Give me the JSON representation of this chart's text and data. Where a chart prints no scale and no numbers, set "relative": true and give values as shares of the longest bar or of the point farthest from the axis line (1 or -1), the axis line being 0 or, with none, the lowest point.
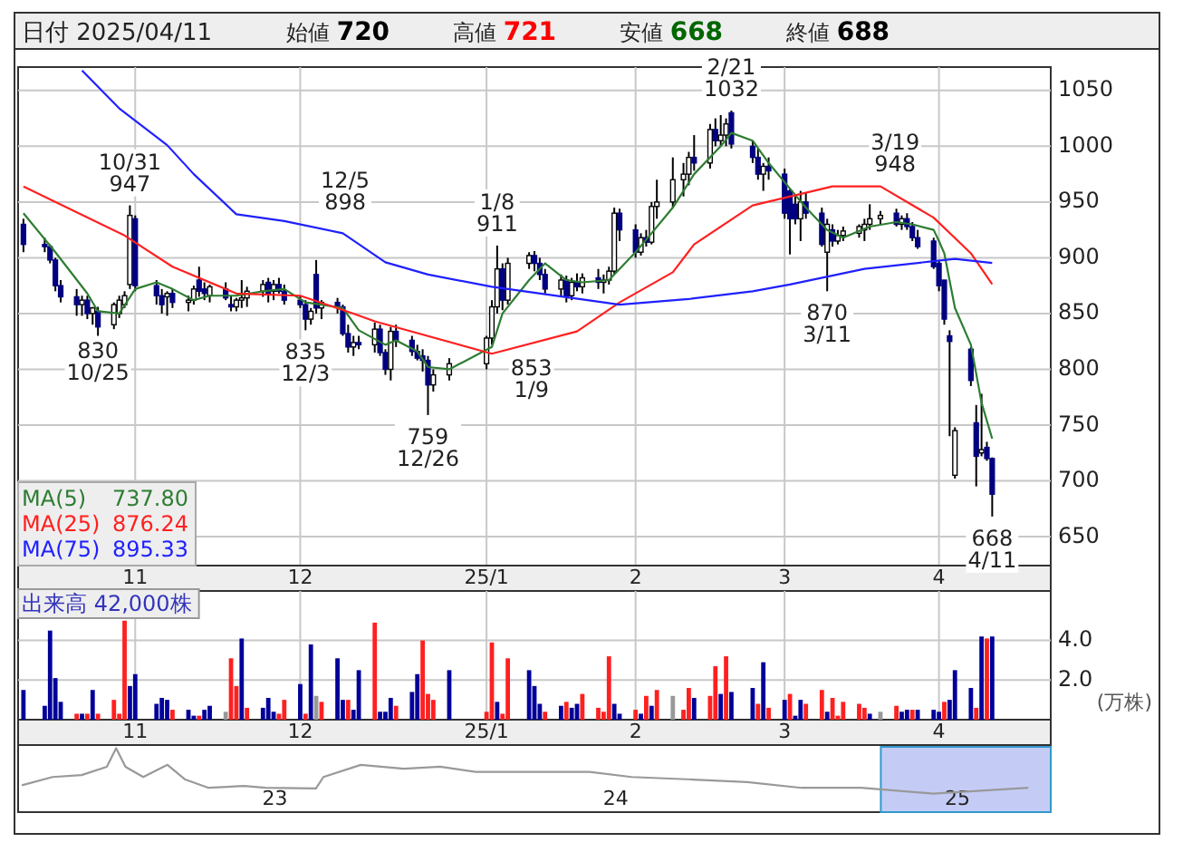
{
  "chart_data": [
    {
      "type": "candlestick",
      "title": "日付 2025/04/11",
      "annotations": [
        "始値 720",
        "高値 721",
        "安値 668",
        "終値 688",
        {
          "text": "10/31\n947",
          "x": "2024-10-31",
          "y": 947
        },
        {
          "text": "830\n10/25",
          "x": "2024-10-25",
          "y": 830
        },
        {
          "text": "12/5\n898",
          "x": "2024-12-05",
          "y": 898
        },
        {
          "text": "835\n12/3",
          "x": "2024-12-03",
          "y": 835
        },
        {
          "text": "759\n12/26",
          "x": "2024-12-26",
          "y": 759
        },
        {
          "text": "1/8\n911",
          "x": "2025-01-08",
          "y": 911
        },
        {
          "text": "853\n1/9",
          "x": "2025-01-09",
          "y": 853
        },
        {
          "text": "2/21\n1032",
          "x": "2025-02-21",
          "y": 1032
        },
        {
          "text": "3/19\n948",
          "x": "2025-03-19",
          "y": 948
        },
        {
          "text": "870\n3/11",
          "x": "2025-03-11",
          "y": 870
        },
        {
          "text": "668\n4/11",
          "x": "2025-04-11",
          "y": 668
        }
      ],
      "x": [
        "2024-10-11",
        "2024-10-15",
        "2024-10-16",
        "2024-10-17",
        "2024-10-18",
        "2024-10-21",
        "2024-10-22",
        "2024-10-23",
        "2024-10-24",
        "2024-10-25",
        "2024-10-28",
        "2024-10-29",
        "2024-10-30",
        "2024-10-31",
        "2024-11-01",
        "2024-11-05",
        "2024-11-06",
        "2024-11-07",
        "2024-11-08",
        "2024-11-11",
        "2024-11-12",
        "2024-11-13",
        "2024-11-14",
        "2024-11-15",
        "2024-11-18",
        "2024-11-19",
        "2024-11-20",
        "2024-11-21",
        "2024-11-22",
        "2024-11-25",
        "2024-11-26",
        "2024-11-27",
        "2024-11-28",
        "2024-11-29",
        "2024-12-02",
        "2024-12-03",
        "2024-12-04",
        "2024-12-05",
        "2024-12-06",
        "2024-12-09",
        "2024-12-10",
        "2024-12-11",
        "2024-12-12",
        "2024-12-13",
        "2024-12-16",
        "2024-12-17",
        "2024-12-18",
        "2024-12-19",
        "2024-12-20",
        "2024-12-23",
        "2024-12-24",
        "2024-12-25",
        "2024-12-26",
        "2024-12-27",
        "2024-12-30",
        "2025-01-06",
        "2025-01-07",
        "2025-01-08",
        "2025-01-09",
        "2025-01-10",
        "2025-01-14",
        "2025-01-15",
        "2025-01-16",
        "2025-01-17",
        "2025-01-20",
        "2025-01-21",
        "2025-01-22",
        "2025-01-23",
        "2025-01-24",
        "2025-01-27",
        "2025-01-28",
        "2025-01-29",
        "2025-01-30",
        "2025-01-31",
        "2025-02-03",
        "2025-02-04",
        "2025-02-05",
        "2025-02-06",
        "2025-02-07",
        "2025-02-10",
        "2025-02-12",
        "2025-02-13",
        "2025-02-14",
        "2025-02-17",
        "2025-02-18",
        "2025-02-19",
        "2025-02-20",
        "2025-02-21",
        "2025-02-25",
        "2025-02-26",
        "2025-02-27",
        "2025-02-28",
        "2025-03-03",
        "2025-03-04",
        "2025-03-05",
        "2025-03-06",
        "2025-03-07",
        "2025-03-10",
        "2025-03-11",
        "2025-03-12",
        "2025-03-13",
        "2025-03-14",
        "2025-03-17",
        "2025-03-18",
        "2025-03-19",
        "2025-03-21",
        "2025-03-24",
        "2025-03-25",
        "2025-03-26",
        "2025-03-27",
        "2025-03-28",
        "2025-03-31",
        "2025-04-01",
        "2025-04-02",
        "2025-04-03",
        "2025-04-04",
        "2025-04-07",
        "2025-04-08",
        "2025-04-09",
        "2025-04-10",
        "2025-04-11"
      ],
      "ohlc": [
        [
          930,
          935,
          905,
          912
        ],
        [
          912,
          918,
          905,
          910
        ],
        [
          910,
          912,
          895,
          898
        ],
        [
          898,
          900,
          870,
          875
        ],
        [
          875,
          880,
          860,
          865
        ],
        [
          865,
          872,
          848,
          858
        ],
        [
          858,
          866,
          848,
          862
        ],
        [
          862,
          866,
          845,
          850
        ],
        [
          850,
          856,
          840,
          855
        ],
        [
          852,
          856,
          830,
          838
        ],
        [
          840,
          860,
          836,
          858
        ],
        [
          850,
          866,
          846,
          862
        ],
        [
          858,
          870,
          855,
          866
        ],
        [
          876,
          947,
          872,
          938
        ],
        [
          935,
          938,
          870,
          875
        ],
        [
          875,
          880,
          858,
          866
        ],
        [
          866,
          872,
          850,
          858
        ],
        [
          865,
          870,
          848,
          868
        ],
        [
          868,
          872,
          855,
          860
        ],
        [
          860,
          866,
          852,
          862
        ],
        [
          862,
          875,
          858,
          872
        ],
        [
          880,
          892,
          865,
          870
        ],
        [
          872,
          878,
          862,
          868
        ],
        [
          866,
          876,
          860,
          874
        ],
        [
          872,
          878,
          862,
          864
        ],
        [
          858,
          866,
          852,
          856
        ],
        [
          856,
          864,
          852,
          862
        ],
        [
          862,
          880,
          855,
          864
        ],
        [
          864,
          874,
          856,
          870
        ],
        [
          870,
          880,
          865,
          876
        ],
        [
          878,
          882,
          860,
          868
        ],
        [
          870,
          880,
          862,
          876
        ],
        [
          876,
          882,
          868,
          870
        ],
        [
          870,
          876,
          858,
          862
        ],
        [
          862,
          866,
          855,
          858
        ],
        [
          858,
          862,
          835,
          845
        ],
        [
          845,
          855,
          840,
          852
        ],
        [
          885,
          898,
          850,
          855
        ],
        [
          855,
          862,
          845,
          860
        ],
        [
          860,
          864,
          850,
          856
        ],
        [
          856,
          858,
          830,
          832
        ],
        [
          832,
          840,
          815,
          820
        ],
        [
          820,
          830,
          812,
          824
        ],
        [
          824,
          830,
          818,
          822
        ],
        [
          822,
          842,
          815,
          836
        ],
        [
          836,
          840,
          812,
          815
        ],
        [
          815,
          818,
          795,
          800
        ],
        [
          800,
          838,
          790,
          834
        ],
        [
          834,
          840,
          820,
          826
        ],
        [
          826,
          830,
          812,
          816
        ],
        [
          816,
          822,
          808,
          810
        ],
        [
          812,
          818,
          798,
          808
        ],
        [
          808,
          812,
          759,
          786
        ],
        [
          786,
          800,
          780,
          795
        ],
        [
          795,
          810,
          790,
          805
        ],
        [
          805,
          830,
          800,
          828
        ],
        [
          828,
          862,
          822,
          856
        ],
        [
          856,
          911,
          850,
          890
        ],
        [
          890,
          895,
          853,
          862
        ],
        [
          862,
          900,
          858,
          895
        ],
        [
          895,
          905,
          890,
          902
        ],
        [
          902,
          906,
          888,
          895
        ],
        [
          895,
          900,
          880,
          885
        ],
        [
          885,
          890,
          868,
          872
        ],
        [
          872,
          885,
          865,
          880
        ],
        [
          880,
          884,
          860,
          866
        ],
        [
          866,
          882,
          862,
          878
        ],
        [
          878,
          886,
          870,
          874
        ],
        [
          874,
          886,
          868,
          882
        ],
        [
          882,
          890,
          872,
          878
        ],
        [
          878,
          885,
          868,
          880
        ],
        [
          880,
          892,
          876,
          888
        ],
        [
          888,
          945,
          885,
          940
        ],
        [
          940,
          944,
          915,
          925
        ],
        [
          925,
          930,
          900,
          905
        ],
        [
          905,
          922,
          902,
          918
        ],
        [
          918,
          925,
          910,
          914
        ],
        [
          914,
          950,
          912,
          946
        ],
        [
          946,
          970,
          935,
          950
        ],
        [
          950,
          990,
          945,
          970
        ],
        [
          970,
          985,
          955,
          975
        ],
        [
          975,
          995,
          965,
          990
        ],
        [
          990,
          1010,
          978,
          985
        ],
        [
          985,
          1020,
          980,
          1015
        ],
        [
          1015,
          1025,
          1000,
          1005
        ],
        [
          1005,
          1028,
          1000,
          1010
        ],
        [
          1010,
          1025,
          1000,
          1020
        ],
        [
          1030,
          1032,
          998,
          1002
        ],
        [
          1000,
          1005,
          985,
          990
        ],
        [
          990,
          998,
          970,
          975
        ],
        [
          975,
          985,
          960,
          982
        ],
        [
          982,
          990,
          970,
          978
        ],
        [
          975,
          980,
          935,
          940
        ],
        [
          960,
          962,
          903,
          935
        ],
        [
          948,
          955,
          930,
          935
        ],
        [
          935,
          960,
          915,
          950
        ],
        [
          950,
          958,
          935,
          940
        ],
        [
          940,
          945,
          910,
          912
        ],
        [
          905,
          935,
          870,
          930
        ],
        [
          925,
          930,
          910,
          915
        ],
        [
          915,
          925,
          912,
          920
        ],
        [
          920,
          928,
          915,
          924
        ],
        [
          922,
          930,
          918,
          928
        ],
        [
          925,
          935,
          915,
          930
        ],
        [
          930,
          948,
          925,
          935
        ],
        [
          935,
          942,
          930,
          938
        ],
        [
          940,
          944,
          928,
          930
        ],
        [
          930,
          938,
          925,
          935
        ],
        [
          935,
          940,
          925,
          928
        ],
        [
          928,
          932,
          915,
          918
        ],
        [
          918,
          925,
          908,
          910
        ],
        [
          915,
          918,
          890,
          892
        ],
        [
          895,
          898,
          870,
          875
        ],
        [
          880,
          880,
          840,
          845
        ],
        [
          830,
          835,
          740,
          825
        ],
        [
          705,
          748,
          702,
          745
        ],
        [
          818,
          820,
          785,
          790
        ],
        [
          752,
          768,
          695,
          722
        ],
        [
          725,
          778,
          722,
          728
        ],
        [
          730,
          735,
          718,
          720
        ],
        [
          720,
          721,
          668,
          688
        ]
      ],
      "series": [
        {
          "name": "MA(5) 737.80",
          "type": "line",
          "color": "#2e7d32",
          "x": [
            "2024-10-11",
            "2024-10-17",
            "2024-10-23",
            "2024-10-25",
            "2024-10-29",
            "2024-11-01",
            "2024-11-05",
            "2024-11-08",
            "2024-11-12",
            "2024-11-15",
            "2024-11-20",
            "2024-11-25",
            "2024-11-29",
            "2024-12-03",
            "2024-12-06",
            "2024-12-10",
            "2024-12-13",
            "2024-12-18",
            "2024-12-20",
            "2024-12-24",
            "2024-12-26",
            "2024-12-30",
            "2025-01-07",
            "2025-01-09",
            "2025-01-14",
            "2025-01-17",
            "2025-01-21",
            "2025-01-24",
            "2025-01-29",
            "2025-02-03",
            "2025-02-06",
            "2025-02-10",
            "2025-02-14",
            "2025-02-19",
            "2025-02-21",
            "2025-02-25",
            "2025-02-28",
            "2025-03-04",
            "2025-03-07",
            "2025-03-11",
            "2025-03-14",
            "2025-03-19",
            "2025-03-24",
            "2025-03-27",
            "2025-03-31",
            "2025-04-01",
            "2025-04-02",
            "2025-04-04",
            "2025-04-07",
            "2025-04-09",
            "2025-04-11"
          ],
          "values": [
            940,
            905,
            868,
            852,
            850,
            872,
            878,
            872,
            862,
            866,
            866,
            870,
            872,
            860,
            858,
            855,
            835,
            822,
            826,
            816,
            802,
            800,
            820,
            850,
            880,
            895,
            880,
            878,
            880,
            905,
            922,
            945,
            975,
            1000,
            1012,
            1005,
            985,
            962,
            945,
            925,
            918,
            928,
            932,
            930,
            925,
            915,
            904,
            855,
            822,
            770,
            737.8
          ]
        },
        {
          "name": "MA(25) 876.24",
          "type": "line",
          "color": "#ff2020",
          "x": [
            "2024-10-11",
            "2024-10-30",
            "2024-11-08",
            "2024-11-20",
            "2024-12-02",
            "2024-12-12",
            "2024-12-16",
            "2025-01-07",
            "2025-01-23",
            "2025-01-31",
            "2025-02-10",
            "2025-02-14",
            "2025-02-25",
            "2025-03-12",
            "2025-03-21",
            "2025-03-31",
            "2025-04-07",
            "2025-04-11"
          ],
          "values": [
            964,
            920,
            892,
            868,
            866,
            850,
            843,
            814,
            834,
            860,
            887,
            912,
            947,
            964,
            964,
            936,
            904,
            876.24
          ]
        },
        {
          "name": "MA(75) 895.33",
          "type": "line",
          "color": "#2020ff",
          "x": [
            "2024-10-22",
            "2024-10-29",
            "2024-11-07",
            "2024-11-12",
            "2024-11-20",
            "2024-11-29",
            "2024-12-10",
            "2024-12-18",
            "2024-12-26",
            "2025-01-07",
            "2025-01-28",
            "2025-01-31",
            "2025-02-13",
            "2025-02-25",
            "2025-03-04",
            "2025-03-18",
            "2025-03-31",
            "2025-04-04",
            "2025-04-11"
          ],
          "values": [
            1068,
            1034,
            1001,
            975,
            939,
            933,
            922,
            896,
            885,
            874,
            860,
            858,
            863,
            870,
            876,
            890,
            897,
            899,
            895.33
          ]
        }
      ],
      "xlim": [
        "2024-10-10",
        "2025-04-22"
      ],
      "ylim": [
        624,
        1071
      ],
      "yticks": [
        650,
        700,
        750,
        800,
        850,
        900,
        950,
        1000,
        1050
      ],
      "xticks": [
        {
          "value": "2024-11-01",
          "label": "11"
        },
        {
          "value": "2024-12-02",
          "label": "12"
        },
        {
          "value": "2025-01-06",
          "label": "25/1"
        },
        {
          "value": "2025-02-03",
          "label": "2"
        },
        {
          "value": "2025-03-03",
          "label": "3"
        },
        {
          "value": "2025-04-01",
          "label": "4"
        }
      ],
      "grid": true,
      "legend": "bottom left"
    },
    {
      "type": "bar",
      "title": "出来高 42,000株",
      "ylabel": "(万株)",
      "x": [
        "2024-10-11",
        "2024-10-15",
        "2024-10-16",
        "2024-10-17",
        "2024-10-18",
        "2024-10-21",
        "2024-10-22",
        "2024-10-23",
        "2024-10-24",
        "2024-10-25",
        "2024-10-28",
        "2024-10-29",
        "2024-10-30",
        "2024-10-31",
        "2024-11-01",
        "2024-11-05",
        "2024-11-06",
        "2024-11-07",
        "2024-11-08",
        "2024-11-11",
        "2024-11-12",
        "2024-11-13",
        "2024-11-14",
        "2024-11-15",
        "2024-11-18",
        "2024-11-19",
        "2024-11-20",
        "2024-11-21",
        "2024-11-22",
        "2024-11-25",
        "2024-11-26",
        "2024-11-27",
        "2024-11-28",
        "2024-11-29",
        "2024-12-02",
        "2024-12-03",
        "2024-12-04",
        "2024-12-05",
        "2024-12-06",
        "2024-12-09",
        "2024-12-10",
        "2024-12-11",
        "2024-12-12",
        "2024-12-13",
        "2024-12-16",
        "2024-12-17",
        "2024-12-18",
        "2024-12-19",
        "2024-12-20",
        "2024-12-23",
        "2024-12-24",
        "2024-12-25",
        "2024-12-26",
        "2024-12-27",
        "2024-12-30",
        "2025-01-06",
        "2025-01-07",
        "2025-01-08",
        "2025-01-09",
        "2025-01-10",
        "2025-01-14",
        "2025-01-15",
        "2025-01-16",
        "2025-01-17",
        "2025-01-20",
        "2025-01-21",
        "2025-01-22",
        "2025-01-23",
        "2025-01-24",
        "2025-01-27",
        "2025-01-28",
        "2025-01-29",
        "2025-01-30",
        "2025-01-31",
        "2025-02-03",
        "2025-02-04",
        "2025-02-05",
        "2025-02-06",
        "2025-02-07",
        "2025-02-10",
        "2025-02-12",
        "2025-02-13",
        "2025-02-14",
        "2025-02-17",
        "2025-02-18",
        "2025-02-19",
        "2025-02-20",
        "2025-02-21",
        "2025-02-25",
        "2025-02-26",
        "2025-02-27",
        "2025-02-28",
        "2025-03-03",
        "2025-03-04",
        "2025-03-05",
        "2025-03-06",
        "2025-03-07",
        "2025-03-10",
        "2025-03-11",
        "2025-03-12",
        "2025-03-13",
        "2025-03-14",
        "2025-03-17",
        "2025-03-18",
        "2025-03-19",
        "2025-03-21",
        "2025-03-24",
        "2025-03-25",
        "2025-03-26",
        "2025-03-27",
        "2025-03-28",
        "2025-03-31",
        "2025-04-01",
        "2025-04-02",
        "2025-04-03",
        "2025-04-04",
        "2025-04-07",
        "2025-04-08",
        "2025-04-09",
        "2025-04-10",
        "2025-04-11"
      ],
      "values": [
        1.5,
        0.7,
        4.5,
        2.1,
        0.9,
        0.3,
        0.3,
        0.3,
        1.5,
        0.3,
        1.0,
        0.3,
        5.0,
        1.7,
        2.3,
        0.8,
        1.1,
        1.0,
        0.5,
        0.5,
        0.2,
        0.2,
        0.5,
        0.7,
        0.4,
        3.1,
        1.7,
        4.1,
        0.6,
        0.6,
        1.1,
        0.4,
        0.3,
        1.0,
        1.8,
        0.3,
        3.8,
        1.2,
        0.9,
        3.1,
        1.0,
        1.0,
        0.5,
        2.5,
        4.9,
        0.4,
        0.4,
        1.1,
        0.7,
        1.4,
        2.3,
        4.0,
        1.3,
        1.0,
        2.5,
        0.4,
        3.9,
        0.9,
        0.3,
        3.1,
        2.5,
        1.7,
        0.8,
        0.4,
        0.7,
        0.9,
        0.6,
        0.8,
        1.3,
        0.6,
        0.4,
        3.2,
        0.8,
        0.3,
        0.5,
        0.3,
        1.2,
        0.7,
        1.5,
        1.2,
        0.5,
        1.6,
        1.1,
        1.2,
        2.7,
        1.3,
        3.2,
        1.4,
        1.6,
        0.8,
        2.9,
        0.6,
        1.0,
        1.3,
        0.2,
        1.0,
        0.8,
        1.5,
        0.4,
        1.1,
        0.2,
        0.9,
        0.8,
        0.6,
        0.3,
        0.4,
        0.7,
        0.4,
        0.5,
        0.5,
        0.5,
        0.5,
        0.4,
        0.9,
        1.0,
        2.5,
        1.6,
        0.6,
        4.2,
        4.1,
        4.2
      ],
      "colors": [
        "#000099",
        "#000099",
        "#000099",
        "#000099",
        "#000099",
        "#ff2020",
        "#000099",
        "#ff2020",
        "#000099",
        "#ff2020",
        "#ff2020",
        "#ff2020",
        "#ff2020",
        "#000099",
        "#000099",
        "#000099",
        "#000099",
        "#000099",
        "#ff2020",
        "#000099",
        "#000099",
        "#ff2020",
        "#000099",
        "#000099",
        "#999999",
        "#ff2020",
        "#ff2020",
        "#000099",
        "#ff2020",
        "#000099",
        "#000099",
        "#000099",
        "#ff2020",
        "#ff2020",
        "#000099",
        "#ff2020",
        "#000099",
        "#999999",
        "#ff2020",
        "#000099",
        "#000099",
        "#ff2020",
        "#000099",
        "#000099",
        "#ff2020",
        "#000099",
        "#000099",
        "#000099",
        "#ff2020",
        "#000099",
        "#000099",
        "#ff2020",
        "#ff2020",
        "#ff2020",
        "#000099",
        "#ff2020",
        "#ff2020",
        "#000099",
        "#ff2020",
        "#ff2020",
        "#000099",
        "#000099",
        "#000099",
        "#ff2020",
        "#000099",
        "#ff2020",
        "#000099",
        "#000099",
        "#ff2020",
        "#ff2020",
        "#ff2020",
        "#ff2020",
        "#000099",
        "#000099",
        "#ff2020",
        "#000099",
        "#ff2020",
        "#000099",
        "#ff2020",
        "#999999",
        "#ff2020",
        "#ff2020",
        "#000099",
        "#ff2020",
        "#ff2020",
        "#000099",
        "#ff2020",
        "#000099",
        "#000099",
        "#ff2020",
        "#000099",
        "#ff2020",
        "#000099",
        "#ff2020",
        "#000099",
        "#000099",
        "#ff2020",
        "#ff2020",
        "#000099",
        "#ff2020",
        "#ff2020",
        "#ff2020",
        "#ff2020",
        "#ff2020",
        "#000099",
        "#999999",
        "#ff2020",
        "#000099",
        "#000099",
        "#ff2020",
        "#000099",
        "#000099",
        "#000099",
        "#ff2020",
        "#000099",
        "#000099",
        "#000099",
        "#ff2020",
        "#000099",
        "#ff2020",
        "#000099"
      ],
      "xlim": [
        "2024-10-10",
        "2025-04-22"
      ],
      "ylim": [
        0,
        6.5
      ],
      "yticks": [
        {
          "value": 2,
          "label": "2.0"
        },
        {
          "value": 4,
          "label": "4.0"
        }
      ],
      "xticks": [
        {
          "value": "2024-11-01",
          "label": "11"
        },
        {
          "value": "2024-12-02",
          "label": "12"
        },
        {
          "value": "2025-01-06",
          "label": "25/1"
        },
        {
          "value": "2025-02-03",
          "label": "2"
        },
        {
          "value": "2025-03-03",
          "label": "3"
        },
        {
          "value": "2025-04-01",
          "label": "4"
        }
      ],
      "grid": true
    },
    {
      "type": "line",
      "relative": true,
      "color": "#999999",
      "x": [
        "2022-04-05",
        "2022-05-08",
        "2022-06-08",
        "2022-07-05",
        "2022-07-15",
        "2022-07-25",
        "2022-08-13",
        "2022-09-08",
        "2022-09-27",
        "2022-10-22",
        "2022-11-29",
        "2022-12-22",
        "2023-02-14",
        "2023-02-22",
        "2023-04-03",
        "2023-05-19",
        "2023-06-27",
        "2023-08-04",
        "2023-10-07",
        "2023-12-04",
        "2024-01-18",
        "2024-03-24",
        "2024-05-21",
        "2024-07-18",
        "2024-09-20",
        "2024-12-06",
        "2025-03-18"
      ],
      "values": [
        0.42,
        0.55,
        0.58,
        0.71,
        1,
        0.71,
        0.55,
        0.74,
        0.51,
        0.38,
        0.41,
        0.38,
        0.37,
        0.55,
        0.74,
        0.68,
        0.71,
        0.63,
        0.63,
        0.63,
        0.55,
        0.51,
        0.47,
        0.38,
        0.38,
        0.29,
        0.38
      ],
      "xlim": [
        "2022-04-01",
        "2025-04-11"
      ],
      "xticks": [
        {
          "value": "2023-01-01",
          "label": "23"
        },
        {
          "value": "2024-01-01",
          "label": "24"
        },
        {
          "value": "2025-01-01",
          "label": "25"
        }
      ],
      "bands": [
        {
          "axis": "x",
          "from": "2024-10-11",
          "to": "2025-04-11",
          "color": "#c4ccf6"
        }
      ]
    }
  ]
}
